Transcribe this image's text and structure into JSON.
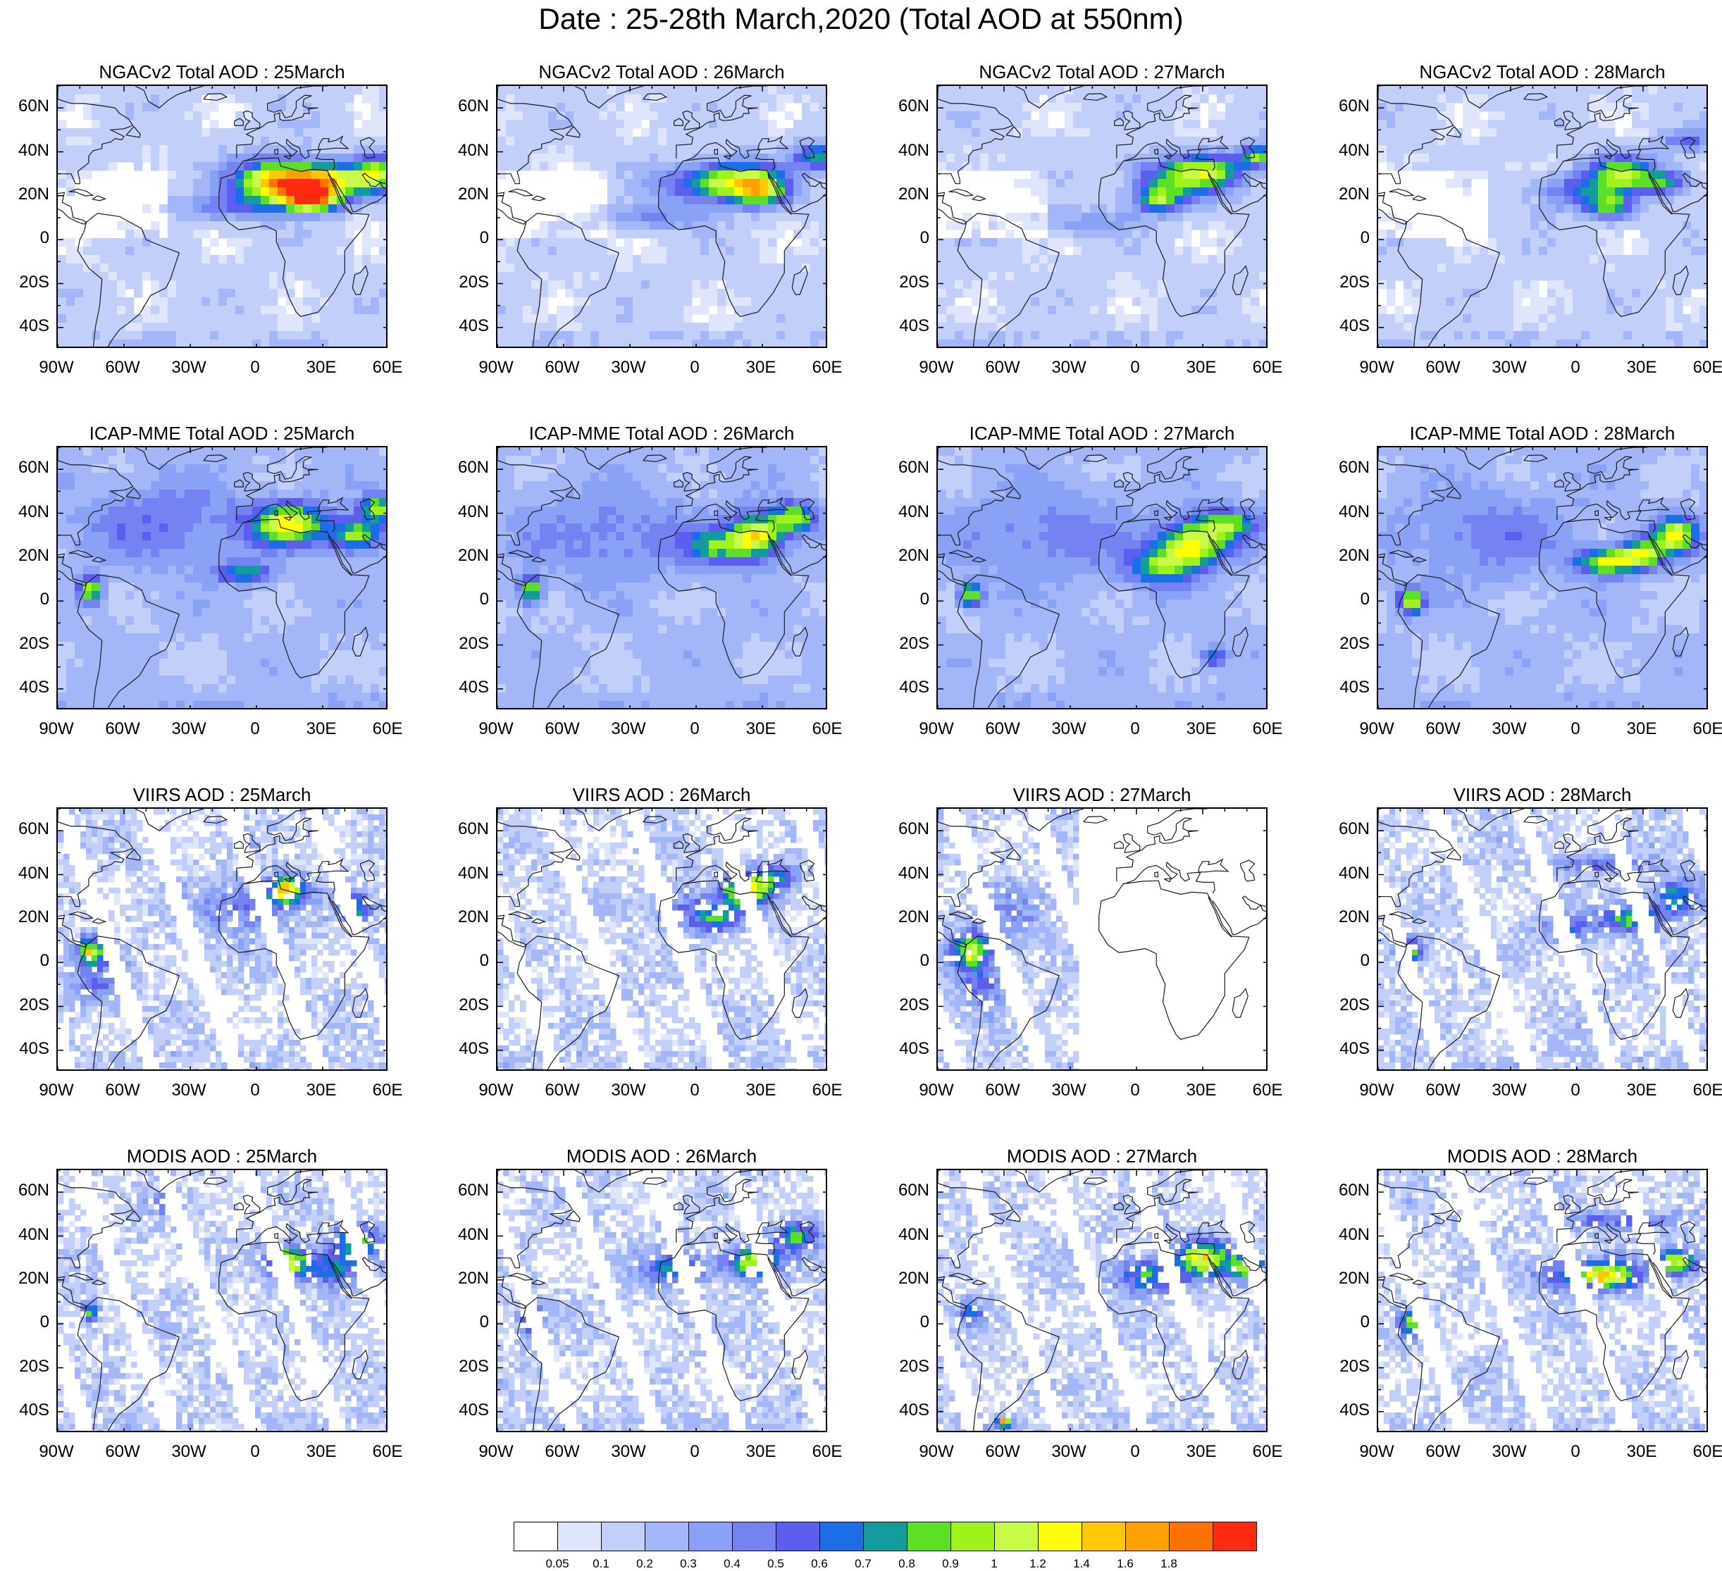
{
  "title": "Date : 25-28th March,2020 (Total AOD at 550nm)",
  "lat_labels": [
    "60N",
    "40N",
    "20N",
    "0",
    "20S",
    "40S"
  ],
  "lon_labels": [
    "90W",
    "60W",
    "30W",
    "0",
    "30E",
    "60E"
  ],
  "panels": [
    {
      "title": "NGACv2 Total AOD : 25March",
      "model": "NGACv2",
      "day": "25March",
      "kind": "model"
    },
    {
      "title": "NGACv2 Total AOD : 26March",
      "model": "NGACv2",
      "day": "26March",
      "kind": "model"
    },
    {
      "title": "NGACv2 Total AOD : 27March",
      "model": "NGACv2",
      "day": "27March",
      "kind": "model"
    },
    {
      "title": "NGACv2 Total AOD : 28March",
      "model": "NGACv2",
      "day": "28March",
      "kind": "model"
    },
    {
      "title": "ICAP-MME Total AOD : 25March",
      "model": "ICAP-MME",
      "day": "25March",
      "kind": "model"
    },
    {
      "title": "ICAP-MME Total AOD : 26March",
      "model": "ICAP-MME",
      "day": "26March",
      "kind": "model"
    },
    {
      "title": "ICAP-MME Total AOD : 27March",
      "model": "ICAP-MME",
      "day": "27March",
      "kind": "model"
    },
    {
      "title": "ICAP-MME Total AOD : 28March",
      "model": "ICAP-MME",
      "day": "28March",
      "kind": "model"
    },
    {
      "title": "VIIRS AOD : 25March",
      "model": "VIIRS",
      "day": "25March",
      "kind": "satellite"
    },
    {
      "title": "VIIRS AOD : 26March",
      "model": "VIIRS",
      "day": "26March",
      "kind": "satellite"
    },
    {
      "title": "VIIRS AOD : 27March",
      "model": "VIIRS",
      "day": "27March",
      "kind": "satellite"
    },
    {
      "title": "VIIRS AOD : 28March",
      "model": "VIIRS",
      "day": "28March",
      "kind": "satellite"
    },
    {
      "title": "MODIS AOD : 25March",
      "model": "MODIS",
      "day": "25March",
      "kind": "satellite"
    },
    {
      "title": "MODIS AOD : 26March",
      "model": "MODIS",
      "day": "26March",
      "kind": "satellite"
    },
    {
      "title": "MODIS AOD : 27March",
      "model": "MODIS",
      "day": "27March",
      "kind": "satellite"
    },
    {
      "title": "MODIS AOD : 28March",
      "model": "MODIS",
      "day": "28March",
      "kind": "satellite"
    }
  ],
  "colorbar": {
    "labels": [
      "0.05",
      "0.1",
      "0.2",
      "0.3",
      "0.4",
      "0.5",
      "0.6",
      "0.7",
      "0.8",
      "0.9",
      "1",
      "1.2",
      "1.4",
      "1.6",
      "1.8"
    ],
    "colors": [
      "#ffffff",
      "#dfe6fb",
      "#c1cff9",
      "#a3b7f8",
      "#8aa2f6",
      "#7482f2",
      "#5c5ef0",
      "#1b6de8",
      "#149b9b",
      "#5be026",
      "#9ff21a",
      "#c8fb45",
      "#ffff00",
      "#ffc800",
      "#ff9f00",
      "#ff7200",
      "#ff2b10"
    ]
  }
}
